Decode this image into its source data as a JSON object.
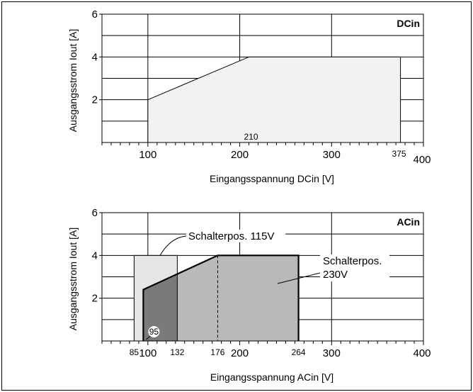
{
  "colors": {
    "frame": "#000000",
    "grid": "#000000",
    "dc_fill": "#f2f2f2",
    "ac115_fill": "#e6e6e6",
    "ac230_fill": "#b9b9b9",
    "overlap_fill": "#7a7a7a",
    "background": "#ffffff"
  },
  "chart_data": [
    {
      "type": "area",
      "tag": "DCin",
      "xlabel": "Eingangsspannung DCin [V]",
      "ylabel": "Ausgangsstrom Iout [A]",
      "xlim": [
        50,
        400
      ],
      "ylim": [
        0,
        6
      ],
      "x_ticks": [
        100,
        200,
        300,
        400
      ],
      "y_ticks": [
        2,
        4,
        6
      ],
      "x_tick_labels": [
        "100",
        "200",
        "300",
        "400"
      ],
      "y_tick_labels": [
        "2",
        "4",
        "6"
      ],
      "grid": true,
      "region": {
        "points": [
          [
            100,
            0
          ],
          [
            100,
            2
          ],
          [
            210,
            4
          ],
          [
            375,
            4
          ],
          [
            375,
            0
          ]
        ]
      },
      "annotations": [
        {
          "text": "210",
          "x": 210,
          "y": 0
        },
        {
          "text": "375",
          "x": 375,
          "y": 0
        }
      ]
    },
    {
      "type": "area",
      "tag": "ACin",
      "xlabel": "Eingangsspannung ACin [V]",
      "ylabel": "Ausgangsstrom Iout [A]",
      "xlim": [
        50,
        400
      ],
      "ylim": [
        0,
        6
      ],
      "x_ticks": [
        100,
        200,
        300,
        400
      ],
      "y_ticks": [
        2,
        4,
        6
      ],
      "x_tick_labels": [
        "100",
        "200",
        "300",
        "400"
      ],
      "y_tick_labels": [
        "2",
        "4",
        "6"
      ],
      "grid": true,
      "regions": [
        {
          "label": "Schalterpos. 115V",
          "points": [
            [
              85,
              0
            ],
            [
              85,
              4
            ],
            [
              132,
              4
            ],
            [
              132,
              0
            ]
          ]
        },
        {
          "label": "Schalterpos. 230V",
          "points": [
            [
              95,
              0
            ],
            [
              95,
              2.4
            ],
            [
              176,
              4
            ],
            [
              264,
              4
            ],
            [
              264,
              0
            ]
          ]
        }
      ],
      "reference_line_x": 176,
      "annotations": [
        {
          "text": "85",
          "x": 85
        },
        {
          "text": "95",
          "x": 95
        },
        {
          "text": "132",
          "x": 132
        },
        {
          "text": "176",
          "x": 176
        },
        {
          "text": "264",
          "x": 264
        }
      ],
      "callouts": {
        "switch_115": "Schalterpos. 115V",
        "switch_230_line1": "Schalterpos.",
        "switch_230_line2": "230V"
      }
    }
  ]
}
